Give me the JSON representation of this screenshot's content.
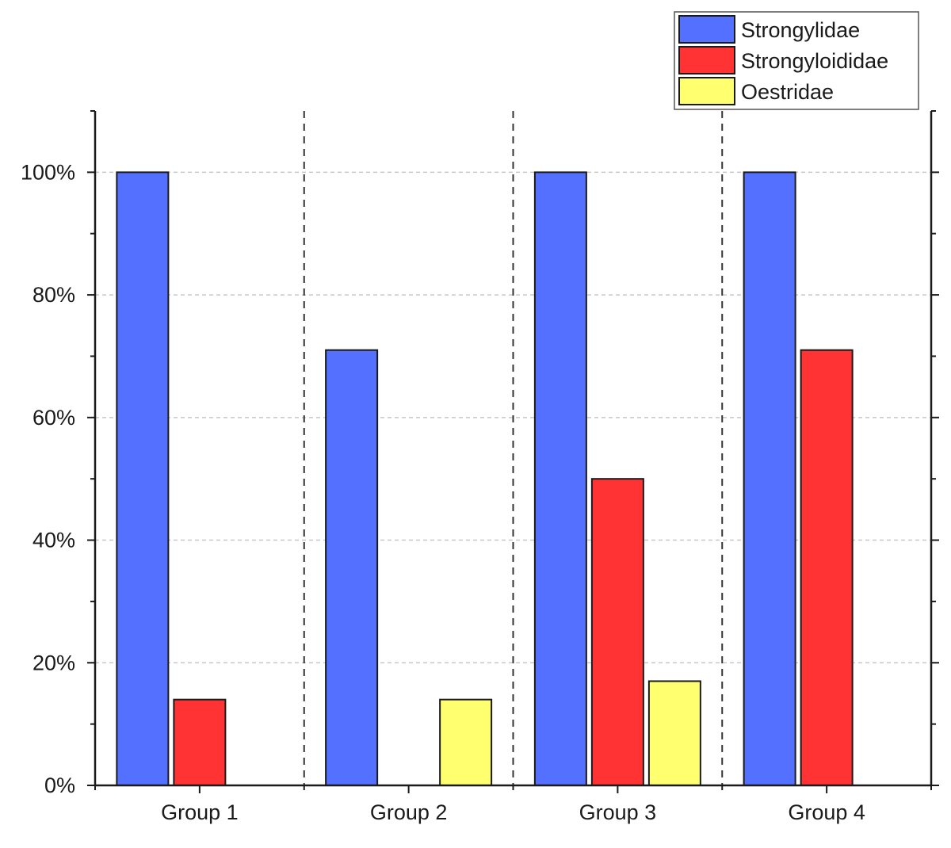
{
  "chart_data": {
    "type": "bar",
    "title": "",
    "xlabel": "",
    "ylabel": "",
    "categories": [
      "Group 1",
      "Group 2",
      "Group 3",
      "Group 4"
    ],
    "series": [
      {
        "name": "Strongylidae",
        "color": "#5470ff",
        "values": [
          100,
          71,
          100,
          100
        ]
      },
      {
        "name": "Strongyloididae",
        "color": "#ff3333",
        "values": [
          14,
          0,
          50,
          71
        ]
      },
      {
        "name": "Oestridae",
        "color": "#ffff70",
        "values": [
          0,
          14,
          17,
          0
        ]
      }
    ],
    "ylim": [
      0,
      110
    ],
    "yticks": [
      0,
      20,
      40,
      60,
      80,
      100
    ],
    "ytick_labels": [
      "0%",
      "20%",
      "40%",
      "60%",
      "80%",
      "100%"
    ],
    "grid": true,
    "group_separators": true,
    "legend_position": "top-right"
  }
}
